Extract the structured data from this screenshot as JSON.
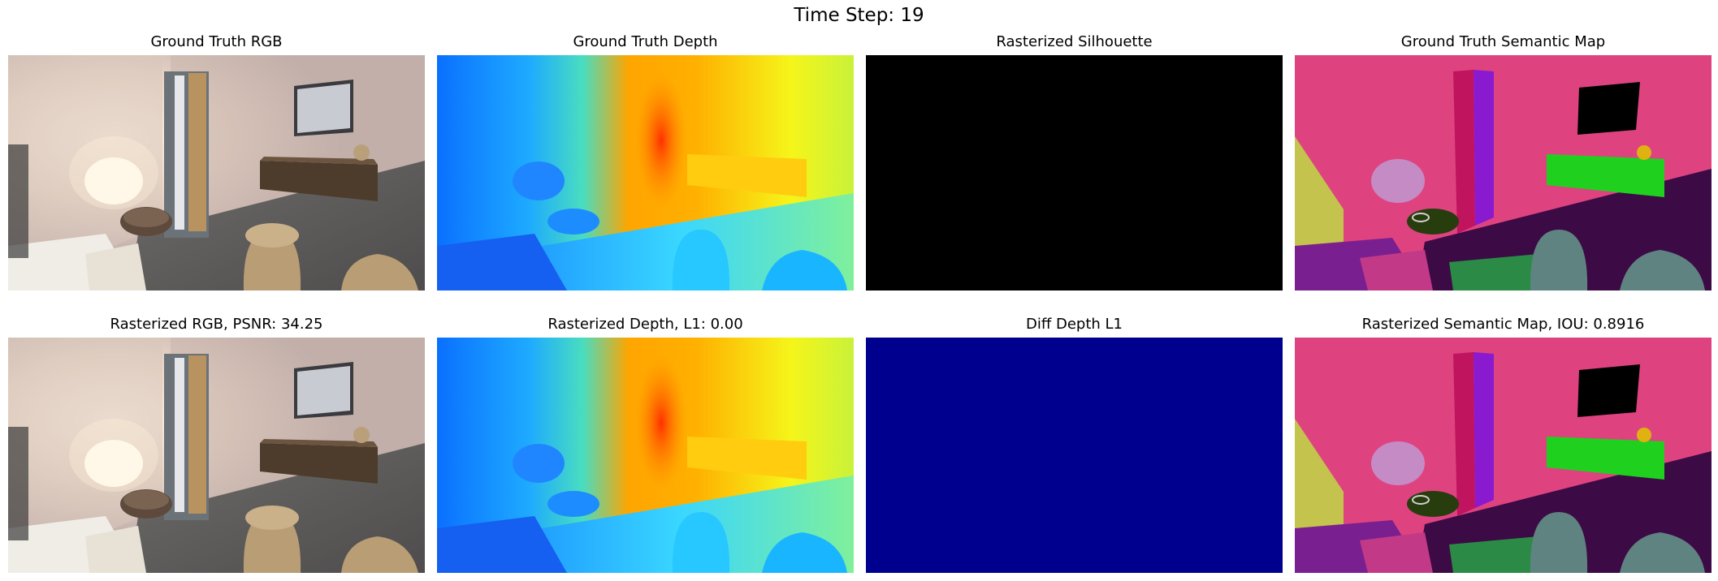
{
  "figure": {
    "title": "Time Step: 19"
  },
  "panels": {
    "gt_rgb": {
      "title": "Ground Truth RGB"
    },
    "gt_depth": {
      "title": "Ground Truth Depth"
    },
    "silhouette": {
      "title": "Rasterized Silhouette"
    },
    "gt_semantic": {
      "title": "Ground Truth Semantic Map"
    },
    "render_rgb": {
      "title": "Rasterized RGB, PSNR: 34.25",
      "psnr": 34.25
    },
    "render_depth": {
      "title": "Rasterized Depth, L1: 0.00",
      "l1": 0.0
    },
    "diff_depth": {
      "title": "Diff Depth L1"
    },
    "render_semantic": {
      "title": "Rasterized Semantic Map, IOU: 0.8916",
      "iou": 0.8916
    }
  },
  "colors": {
    "silhouette": "#000000",
    "diff_depth": "#00008f",
    "semantic_wall": "#de4380",
    "semantic_floor": "#3c0a45",
    "semantic_cabinet": "#1fd01f",
    "semantic_stool": "#5f8380"
  }
}
